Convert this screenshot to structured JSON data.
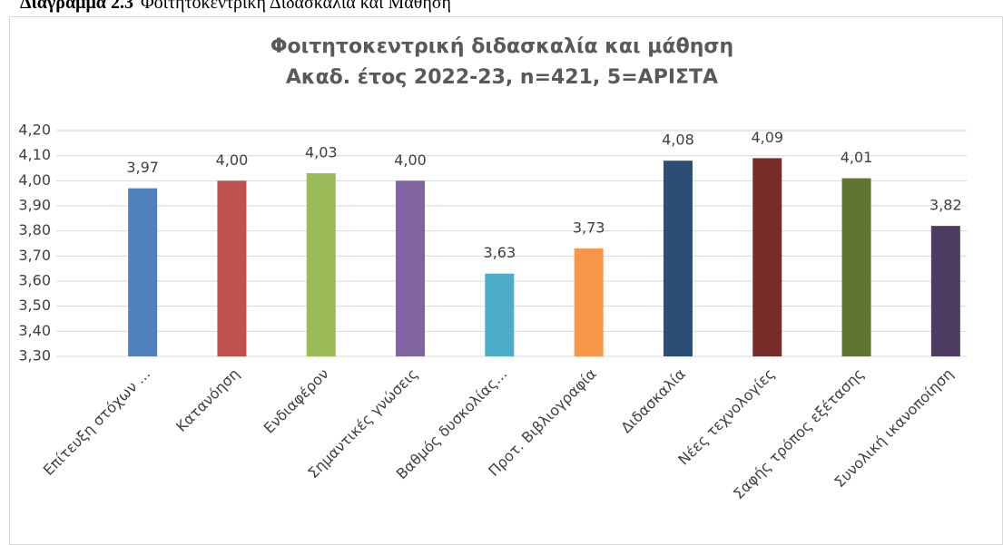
{
  "caption": {
    "number": "Διάγραμμα 2.3",
    "text": "Φοιτητοκεντρική Διδασκαλία και Μάθηση"
  },
  "chart_data": {
    "type": "bar",
    "title": [
      "Φοιτητοκεντρική διδασκαλία και μάθηση",
      "Ακαδ. έτος 2022-23, n=421, 5=ΑΡΙΣΤΑ"
    ],
    "categories": [
      "Επίτευξη στόχων ...",
      "Κατανόηση",
      "Ενδιαφέρον",
      "Σημαντικές γνώσεις",
      "Βαθμός δυσκολίας...",
      "Προτ. Βιβλιογραφία",
      "Διδασκαλία",
      "Νέες τεχνολογίες",
      "Σαφής τρόπος εξέτασης",
      "Συνολική ικανοποίηση"
    ],
    "values": [
      3.97,
      4.0,
      4.03,
      4.0,
      3.63,
      3.73,
      4.08,
      4.09,
      4.01,
      3.82
    ],
    "value_labels": [
      "3,97",
      "4,00",
      "4,03",
      "4,00",
      "3,63",
      "3,73",
      "4,08",
      "4,09",
      "4,01",
      "3,82"
    ],
    "colors": [
      "#4f81bd",
      "#c0504d",
      "#9bbb59",
      "#8064a2",
      "#4bacc6",
      "#f79646",
      "#2c4d75",
      "#772c2a",
      "#5f7530",
      "#4d3b62"
    ],
    "ylim": [
      3.3,
      4.2
    ],
    "yticks": [
      {
        "value": 3.3,
        "label": "3,30"
      },
      {
        "value": 3.4,
        "label": "3,40"
      },
      {
        "value": 3.5,
        "label": "3,50"
      },
      {
        "value": 3.6,
        "label": "3,60"
      },
      {
        "value": 3.7,
        "label": "3,70"
      },
      {
        "value": 3.8,
        "label": "3,80"
      },
      {
        "value": 3.9,
        "label": "3,90"
      },
      {
        "value": 4.0,
        "label": "4,00"
      },
      {
        "value": 4.1,
        "label": "4,10"
      },
      {
        "value": 4.2,
        "label": "4,20"
      }
    ],
    "grid": true
  }
}
